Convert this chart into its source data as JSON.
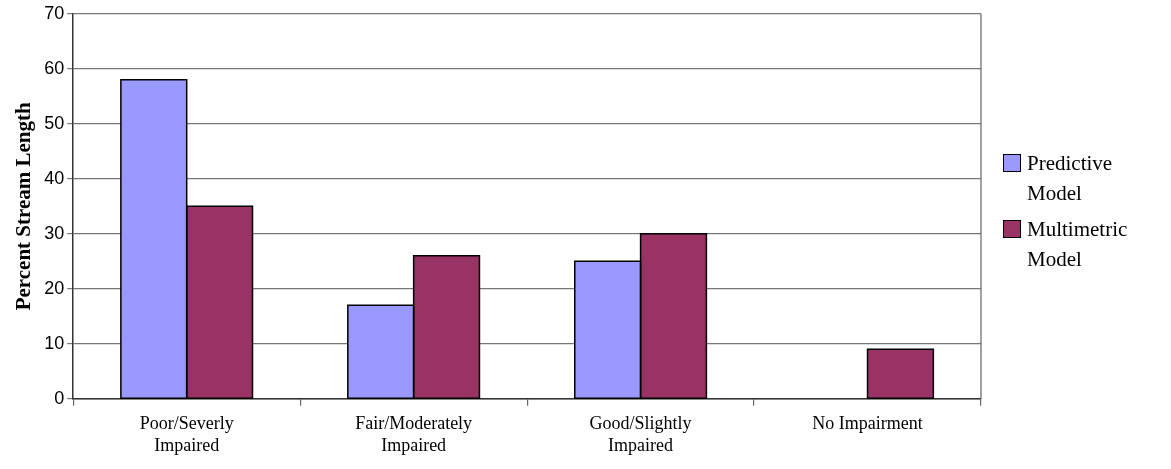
{
  "chart_data": {
    "type": "bar",
    "ylabel": "Percent Stream Length",
    "categories": [
      "Poor/Severly Impaired",
      "Fair/Moderately Impaired",
      "Good/Slightly Impaired",
      "No Impairment"
    ],
    "series": [
      {
        "name": "Predictive Model",
        "color": "#9999ff",
        "values": [
          58,
          17,
          25,
          null
        ]
      },
      {
        "name": "Multimetric Model",
        "color": "#993366",
        "values": [
          35,
          26,
          30,
          9
        ]
      }
    ],
    "ylim": [
      0,
      70
    ],
    "yticks": [
      0,
      10,
      20,
      30,
      40,
      50,
      60,
      70
    ],
    "grid": "y",
    "legend": "right"
  }
}
